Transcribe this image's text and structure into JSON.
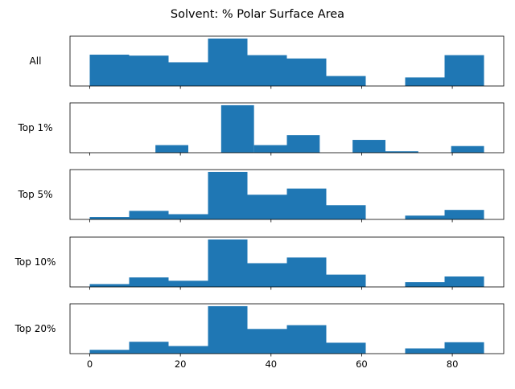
{
  "figure": {
    "title": "Solvent: % Polar Surface Area",
    "bar_color": "#1f77b4"
  },
  "chart_data": [
    {
      "type": "bar",
      "panel_label": "All",
      "bins": [
        {
          "x0": 0.0,
          "x1": 8.7,
          "value": 0.66
        },
        {
          "x0": 8.7,
          "x1": 17.4,
          "value": 0.64
        },
        {
          "x0": 17.4,
          "x1": 26.1,
          "value": 0.5
        },
        {
          "x0": 26.1,
          "x1": 34.8,
          "value": 1.0
        },
        {
          "x0": 34.8,
          "x1": 43.5,
          "value": 0.65
        },
        {
          "x0": 43.5,
          "x1": 52.2,
          "value": 0.58
        },
        {
          "x0": 52.2,
          "x1": 60.9,
          "value": 0.21
        },
        {
          "x0": 60.9,
          "x1": 69.6,
          "value": 0.0
        },
        {
          "x0": 69.6,
          "x1": 78.3,
          "value": 0.18
        },
        {
          "x0": 78.3,
          "x1": 87.0,
          "value": 0.65
        }
      ],
      "xlim": [
        -4.35,
        91.35
      ],
      "ylim": [
        0,
        1.05
      ],
      "show_xticklabels": false
    },
    {
      "type": "bar",
      "panel_label": "Top 1%",
      "bins": [
        {
          "x0": 0.0,
          "x1": 7.25,
          "value": 0.0
        },
        {
          "x0": 7.25,
          "x1": 14.5,
          "value": 0.0
        },
        {
          "x0": 14.5,
          "x1": 21.75,
          "value": 0.16
        },
        {
          "x0": 21.75,
          "x1": 29.0,
          "value": 0.0
        },
        {
          "x0": 29.0,
          "x1": 36.25,
          "value": 1.0
        },
        {
          "x0": 36.25,
          "x1": 43.5,
          "value": 0.16
        },
        {
          "x0": 43.5,
          "x1": 50.75,
          "value": 0.37
        },
        {
          "x0": 50.75,
          "x1": 58.0,
          "value": 0.0
        },
        {
          "x0": 58.0,
          "x1": 65.25,
          "value": 0.27
        },
        {
          "x0": 65.25,
          "x1": 72.5,
          "value": 0.03
        },
        {
          "x0": 72.5,
          "x1": 79.75,
          "value": 0.0
        },
        {
          "x0": 79.75,
          "x1": 87.0,
          "value": 0.14
        }
      ],
      "xlim": [
        -4.35,
        91.35
      ],
      "ylim": [
        0,
        1.05
      ],
      "show_xticklabels": false
    },
    {
      "type": "bar",
      "panel_label": "Top 5%",
      "bins": [
        {
          "x0": 0.0,
          "x1": 8.7,
          "value": 0.05
        },
        {
          "x0": 8.7,
          "x1": 17.4,
          "value": 0.18
        },
        {
          "x0": 17.4,
          "x1": 26.1,
          "value": 0.11
        },
        {
          "x0": 26.1,
          "x1": 34.8,
          "value": 1.0
        },
        {
          "x0": 34.8,
          "x1": 43.5,
          "value": 0.52
        },
        {
          "x0": 43.5,
          "x1": 52.2,
          "value": 0.65
        },
        {
          "x0": 52.2,
          "x1": 60.9,
          "value": 0.3
        },
        {
          "x0": 60.9,
          "x1": 69.6,
          "value": 0.0
        },
        {
          "x0": 69.6,
          "x1": 78.3,
          "value": 0.08
        },
        {
          "x0": 78.3,
          "x1": 87.0,
          "value": 0.2
        }
      ],
      "xlim": [
        -4.35,
        91.35
      ],
      "ylim": [
        0,
        1.05
      ],
      "show_xticklabels": false
    },
    {
      "type": "bar",
      "panel_label": "Top 10%",
      "bins": [
        {
          "x0": 0.0,
          "x1": 8.7,
          "value": 0.06
        },
        {
          "x0": 8.7,
          "x1": 17.4,
          "value": 0.2
        },
        {
          "x0": 17.4,
          "x1": 26.1,
          "value": 0.13
        },
        {
          "x0": 26.1,
          "x1": 34.8,
          "value": 1.0
        },
        {
          "x0": 34.8,
          "x1": 43.5,
          "value": 0.5
        },
        {
          "x0": 43.5,
          "x1": 52.2,
          "value": 0.62
        },
        {
          "x0": 52.2,
          "x1": 60.9,
          "value": 0.26
        },
        {
          "x0": 60.9,
          "x1": 69.6,
          "value": 0.0
        },
        {
          "x0": 69.6,
          "x1": 78.3,
          "value": 0.1
        },
        {
          "x0": 78.3,
          "x1": 87.0,
          "value": 0.22
        }
      ],
      "xlim": [
        -4.35,
        91.35
      ],
      "ylim": [
        0,
        1.05
      ],
      "show_xticklabels": false
    },
    {
      "type": "bar",
      "panel_label": "Top 20%",
      "bins": [
        {
          "x0": 0.0,
          "x1": 8.7,
          "value": 0.08
        },
        {
          "x0": 8.7,
          "x1": 17.4,
          "value": 0.25
        },
        {
          "x0": 17.4,
          "x1": 26.1,
          "value": 0.16
        },
        {
          "x0": 26.1,
          "x1": 34.8,
          "value": 1.0
        },
        {
          "x0": 34.8,
          "x1": 43.5,
          "value": 0.52
        },
        {
          "x0": 43.5,
          "x1": 52.2,
          "value": 0.6
        },
        {
          "x0": 52.2,
          "x1": 60.9,
          "value": 0.23
        },
        {
          "x0": 60.9,
          "x1": 69.6,
          "value": 0.0
        },
        {
          "x0": 69.6,
          "x1": 78.3,
          "value": 0.11
        },
        {
          "x0": 78.3,
          "x1": 87.0,
          "value": 0.24
        }
      ],
      "xlim": [
        -4.35,
        91.35
      ],
      "ylim": [
        0,
        1.05
      ],
      "show_xticklabels": true,
      "xticks": [
        0,
        20,
        40,
        60,
        80
      ],
      "xtick_labels": [
        "0",
        "20",
        "40",
        "60",
        "80"
      ]
    }
  ]
}
